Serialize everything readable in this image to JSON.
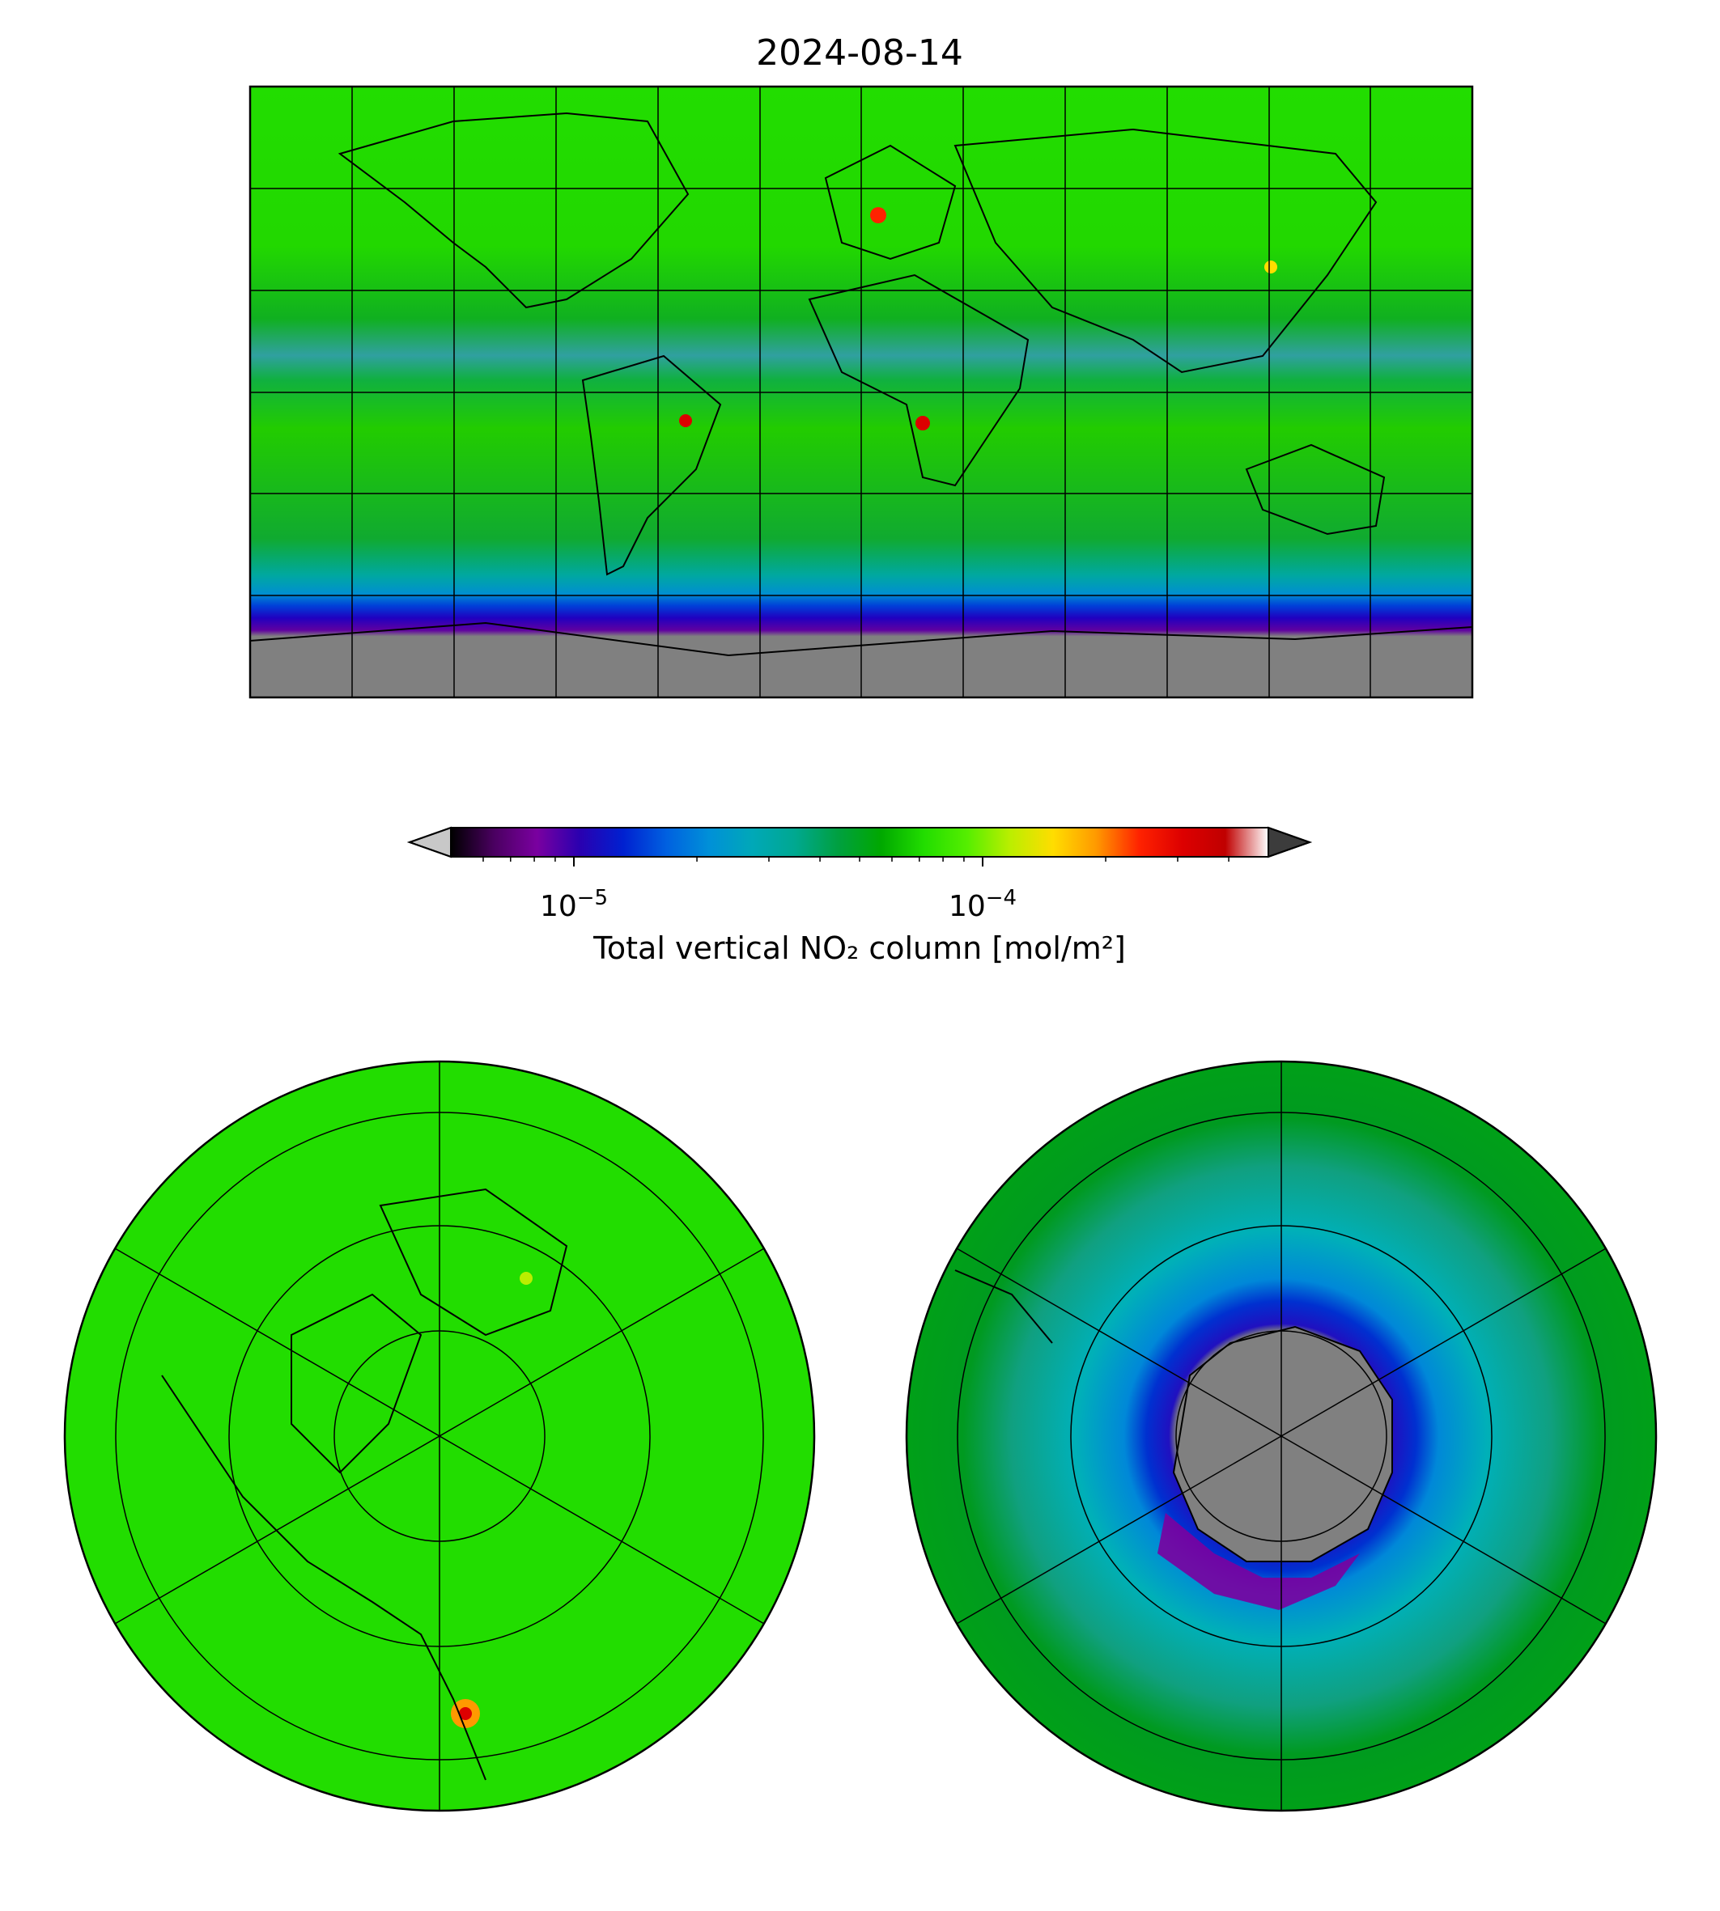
{
  "figure": {
    "title": "2024-08-14",
    "colors": {
      "land_mask": "#808080",
      "background_green": "#22dd00",
      "outline": "#000000"
    }
  },
  "colorbar": {
    "label": "Total vertical NO₂ column [mol/m²]",
    "scale": "log",
    "vmin": 5e-06,
    "vmax": 0.0005,
    "major_ticks": [
      {
        "value": 1e-05,
        "base": "10",
        "exp": "−5"
      },
      {
        "value": 0.0001,
        "base": "10",
        "exp": "−4"
      }
    ],
    "minor_tick_values": [
      6e-06,
      7e-06,
      8e-06,
      9e-06,
      2e-05,
      3e-05,
      4e-05,
      5e-05,
      6e-05,
      7e-05,
      8e-05,
      9e-05,
      0.0002,
      0.0003,
      0.0004
    ],
    "extend": "both",
    "under_color": "#c8c8c8",
    "over_color": "#3c3c3c",
    "stops": [
      "#000000",
      "#4a0060",
      "#7a00a0",
      "#2a00b0",
      "#0020d0",
      "#0060e0",
      "#0090d8",
      "#00a8b8",
      "#00a890",
      "#00a040",
      "#00a800",
      "#22dd00",
      "#55ee00",
      "#bbee00",
      "#ffdd00",
      "#ff9900",
      "#ff2200",
      "#dd0000",
      "#c00000",
      "#ffffff"
    ]
  },
  "maps": [
    {
      "name": "global-platecarree",
      "projection": "PlateCarree",
      "gridlines": true
    },
    {
      "name": "north-polar",
      "projection": "NorthPolarStereo",
      "gridlines": true
    },
    {
      "name": "south-polar",
      "projection": "SouthPolarStereo",
      "gridlines": true
    }
  ]
}
